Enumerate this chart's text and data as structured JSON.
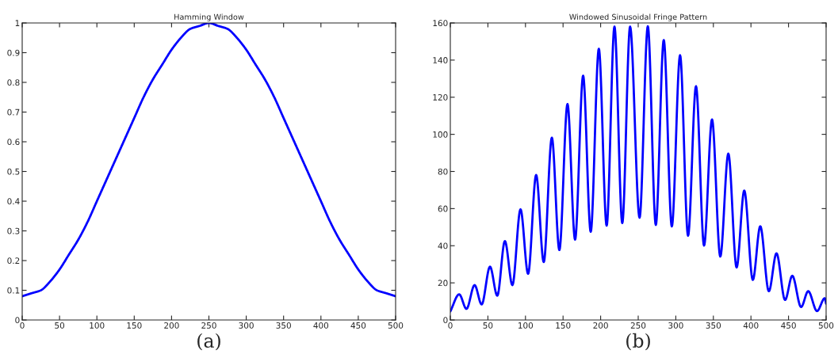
{
  "chart_data": [
    {
      "type": "line",
      "title": "Hamming Window",
      "annotations": [
        "(a)"
      ],
      "x": [
        0,
        12.5,
        25,
        37.5,
        50,
        62.5,
        75,
        87.5,
        100,
        112.5,
        125,
        137.5,
        150,
        162.5,
        175,
        187.5,
        200,
        212.5,
        225,
        237.5,
        250,
        262.5,
        275,
        287.5,
        300,
        312.5,
        325,
        337.5,
        350,
        362.5,
        375,
        387.5,
        400,
        412.5,
        425,
        437.5,
        450,
        462.5,
        475,
        487.5,
        500
      ],
      "series": [
        {
          "color": "#0000ff",
          "values": [
            0.08,
            0.09,
            0.1,
            0.13,
            0.17,
            0.22,
            0.27,
            0.33,
            0.4,
            0.47,
            0.54,
            0.61,
            0.68,
            0.75,
            0.81,
            0.86,
            0.91,
            0.95,
            0.98,
            0.99,
            1.0,
            0.99,
            0.98,
            0.95,
            0.91,
            0.86,
            0.81,
            0.75,
            0.68,
            0.61,
            0.54,
            0.47,
            0.4,
            0.33,
            0.27,
            0.22,
            0.17,
            0.13,
            0.1,
            0.09,
            0.08
          ]
        }
      ],
      "xlim": [
        0,
        500
      ],
      "ylim": [
        0,
        1
      ],
      "xticks": [
        0,
        50,
        100,
        150,
        200,
        250,
        300,
        350,
        400,
        450,
        500
      ],
      "yticks": [
        0,
        0.1,
        0.2,
        0.3,
        0.4,
        0.5,
        0.6,
        0.7,
        0.8,
        0.9,
        1
      ],
      "grid": false,
      "line_style": "solid"
    },
    {
      "type": "line",
      "title": "Windowed Sinusoidal Fringe Pattern",
      "annotations": [
        "(b)"
      ],
      "x": [
        0,
        11.8,
        21.5,
        32.3,
        41.7,
        52.8,
        62.5,
        72.6,
        82.6,
        93.4,
        103.5,
        114.2,
        124.3,
        135.1,
        145.1,
        155.9,
        166,
        176.7,
        186.8,
        197.6,
        208,
        218.4,
        228.8,
        239.2,
        251.8,
        262.8,
        273.4,
        284,
        294.7,
        305.7,
        316.3,
        326.9,
        337.6,
        348.2,
        359.2,
        369.9,
        380.9,
        391.1,
        402.5,
        412.4,
        423.8,
        434,
        445.4,
        455,
        466.7,
        476.2,
        487.9,
        498.2,
        500
      ],
      "series": [
        {
          "color": "#0000ff",
          "values": [
            4.6,
            13.8,
            6.0,
            18.8,
            8.4,
            28.7,
            13.1,
            42.5,
            18.8,
            59.6,
            24.9,
            78.1,
            31.2,
            98.2,
            37.7,
            116.3,
            43.3,
            131.6,
            47.5,
            146.1,
            50.8,
            158,
            52.2,
            158,
            55.1,
            158.2,
            51.2,
            150.8,
            50.4,
            142.6,
            45.4,
            125.9,
            40.1,
            108.0,
            34.2,
            89.6,
            28.3,
            69.7,
            21.6,
            50.5,
            15.5,
            35.9,
            10.8,
            23.8,
            7.0,
            15.5,
            4.8,
            11.7,
            8.8
          ]
        }
      ],
      "xlim": [
        0,
        500
      ],
      "ylim": [
        0,
        160
      ],
      "xticks": [
        0,
        50,
        100,
        150,
        200,
        250,
        300,
        350,
        400,
        450,
        500
      ],
      "yticks": [
        0,
        20,
        40,
        60,
        80,
        100,
        120,
        140,
        160
      ],
      "grid": false,
      "line_style": "solid"
    }
  ]
}
